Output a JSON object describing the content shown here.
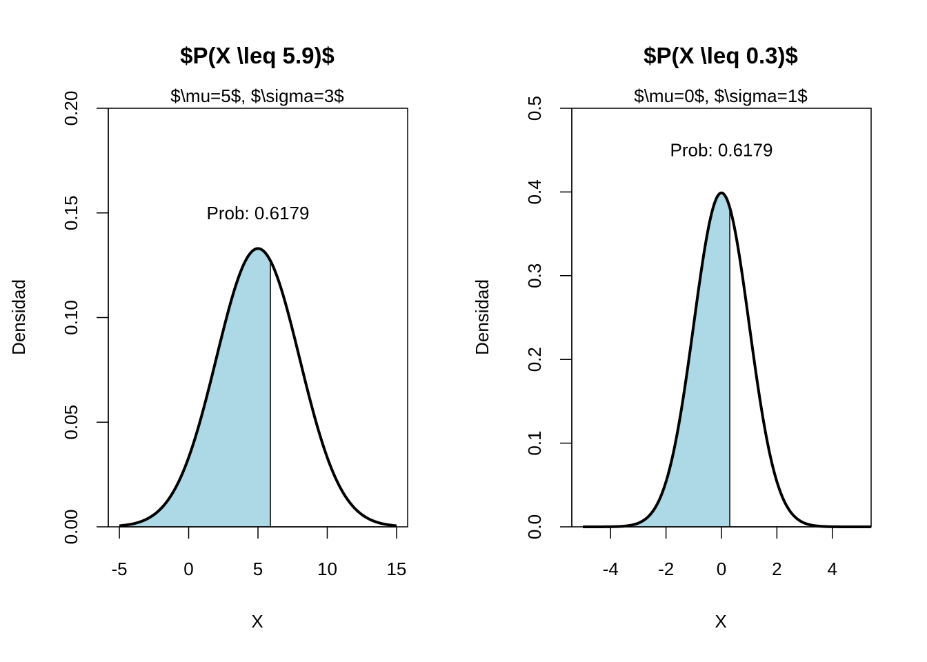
{
  "chart_data": [
    {
      "type": "area",
      "title": "$P(X \\leq 5.9)$",
      "subtitle": "$\\mu=5$, $\\sigma=3$",
      "xlabel": "X",
      "ylabel": "Densidad",
      "mu": 5,
      "sigma": 3,
      "cutoff": 5.9,
      "x_range": [
        -5,
        15
      ],
      "xlim": [
        -5.8,
        15.8
      ],
      "ylim": [
        0,
        0.2
      ],
      "x_ticks": [
        -5,
        0,
        5,
        10,
        15
      ],
      "x_tick_labels": [
        "-5",
        "0",
        "5",
        "10",
        "15"
      ],
      "y_ticks": [
        0,
        0.05,
        0.1,
        0.15,
        0.2
      ],
      "y_tick_labels": [
        "0.00",
        "0.05",
        "0.10",
        "0.15",
        "0.20"
      ],
      "annotation": {
        "text": "Prob: 0.6179",
        "x": 5,
        "y": 0.15
      },
      "fill_color": "#add8e6",
      "grid": false
    },
    {
      "type": "area",
      "title": "$P(X \\leq 0.3)$",
      "subtitle": "$\\mu=0$, $\\sigma=1$",
      "xlabel": "X",
      "ylabel": "Densidad",
      "mu": 0,
      "sigma": 1,
      "cutoff": 0.3,
      "x_range": [
        -5,
        5.4
      ],
      "xlim": [
        -5.4,
        5.4
      ],
      "ylim": [
        0,
        0.5
      ],
      "x_ticks": [
        -4,
        -2,
        0,
        2,
        4
      ],
      "x_tick_labels": [
        "-4",
        "-2",
        "0",
        "2",
        "4"
      ],
      "y_ticks": [
        0,
        0.1,
        0.2,
        0.3,
        0.4,
        0.5
      ],
      "y_tick_labels": [
        "0.0",
        "0.1",
        "0.2",
        "0.3",
        "0.4",
        "0.5"
      ],
      "annotation": {
        "text": "Prob: 0.6179",
        "x": 0,
        "y": 0.45
      },
      "fill_color": "#add8e6",
      "grid": false
    }
  ]
}
